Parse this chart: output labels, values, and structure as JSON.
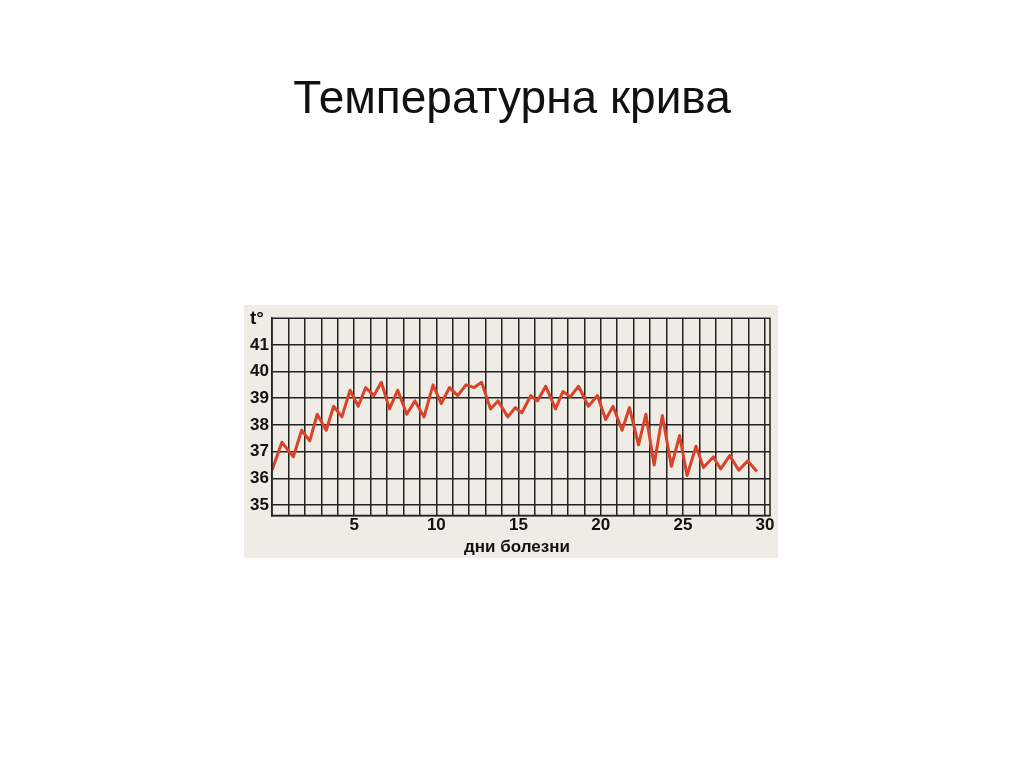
{
  "chart_data": {
    "type": "line",
    "title": "Температурна крива",
    "xlabel": "дни болезни",
    "ylabel": "t°",
    "xlim": [
      0,
      30.3
    ],
    "ylim": [
      34.6,
      42
    ],
    "xticks": [
      {
        "value": 1,
        "label": null
      },
      {
        "value": 2,
        "label": null
      },
      {
        "value": 3,
        "label": null
      },
      {
        "value": 4,
        "label": null
      },
      5,
      {
        "value": 6,
        "label": null
      },
      {
        "value": 7,
        "label": null
      },
      {
        "value": 8,
        "label": null
      },
      {
        "value": 9,
        "label": null
      },
      10,
      {
        "value": 11,
        "label": null
      },
      {
        "value": 12,
        "label": null
      },
      {
        "value": 13,
        "label": null
      },
      {
        "value": 14,
        "label": null
      },
      15,
      {
        "value": 16,
        "label": null
      },
      {
        "value": 17,
        "label": null
      },
      {
        "value": 18,
        "label": null
      },
      {
        "value": 19,
        "label": null
      },
      20,
      {
        "value": 21,
        "label": null
      },
      {
        "value": 22,
        "label": null
      },
      {
        "value": 23,
        "label": null
      },
      {
        "value": 24,
        "label": null
      },
      25,
      {
        "value": 26,
        "label": null
      },
      {
        "value": 27,
        "label": null
      },
      {
        "value": 28,
        "label": null
      },
      {
        "value": 29,
        "label": null
      },
      30
    ],
    "yticks": [
      35,
      36,
      37,
      38,
      39,
      40,
      41
    ],
    "grid": true,
    "legend": false,
    "marker": "none",
    "line_style": "solid",
    "series": [
      {
        "color": "#d9432a",
        "x": [
          0,
          0.6,
          1.3,
          1.8,
          2.3,
          2.75,
          3.3,
          3.75,
          4.25,
          4.75,
          5.25,
          5.7,
          6.2,
          6.65,
          7.15,
          7.65,
          8.2,
          8.7,
          9.25,
          9.8,
          10.3,
          10.8,
          11.3,
          11.8,
          12.3,
          12.75,
          13.3,
          13.75,
          14.35,
          14.8,
          15.2,
          15.75,
          16.15,
          16.65,
          17.25,
          17.7,
          18.15,
          18.65,
          19.25,
          19.8,
          20.3,
          20.75,
          21.3,
          21.75,
          22.3,
          22.75,
          23.25,
          23.75,
          24.3,
          24.8,
          25.25,
          25.8,
          26.25,
          26.85,
          27.3,
          27.85,
          28.4,
          28.95,
          29.5
        ],
        "values": [
          36.3,
          37.35,
          36.8,
          37.8,
          37.4,
          38.4,
          37.8,
          38.7,
          38.3,
          39.3,
          38.7,
          39.4,
          39.1,
          39.6,
          38.6,
          39.3,
          38.4,
          38.9,
          38.3,
          39.5,
          38.8,
          39.4,
          39.1,
          39.5,
          39.4,
          39.6,
          38.6,
          38.9,
          38.3,
          38.65,
          38.45,
          39.1,
          38.9,
          39.45,
          38.6,
          39.25,
          39.05,
          39.45,
          38.7,
          39.1,
          38.2,
          38.7,
          37.8,
          38.65,
          37.25,
          38.4,
          36.5,
          38.35,
          36.45,
          37.6,
          36.1,
          37.2,
          36.4,
          36.8,
          36.35,
          36.85,
          36.3,
          36.65,
          36.25
        ]
      }
    ]
  }
}
